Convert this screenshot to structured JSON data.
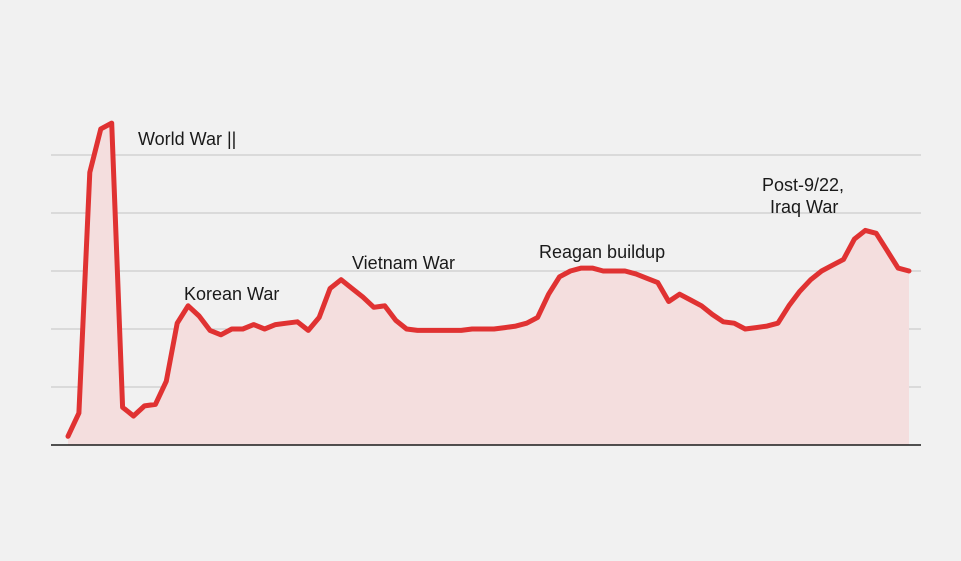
{
  "chart_data": {
    "type": "area",
    "title": "",
    "xlabel": "",
    "ylabel": "",
    "grid": true,
    "legend": "none",
    "ylim": [
      0,
      100
    ],
    "x": [
      0,
      1,
      2,
      3,
      4,
      5,
      6,
      7,
      8,
      9,
      10,
      11,
      12,
      13,
      14,
      15,
      16,
      17,
      18,
      19,
      20,
      21,
      22,
      23,
      24,
      25,
      26,
      27,
      28,
      29,
      30,
      31,
      32,
      33,
      34,
      35,
      36,
      37,
      38,
      39,
      40,
      41,
      42,
      43,
      44,
      45,
      46,
      47,
      48,
      49,
      50,
      51,
      52,
      53,
      54,
      55,
      56,
      57,
      58,
      59,
      60,
      61,
      62,
      63,
      64,
      65,
      66,
      67,
      68,
      69,
      70,
      71,
      72,
      73,
      74,
      75,
      76,
      77
    ],
    "series": [
      {
        "values": [
          3,
          11,
          94,
          109,
          111,
          13,
          10,
          13.5,
          14,
          22,
          42,
          48,
          44.5,
          39.5,
          38,
          40,
          40,
          41.5,
          40,
          41.5,
          42,
          42.5,
          39.5,
          44,
          54,
          57,
          54,
          51,
          47.5,
          48,
          43,
          40,
          39.5,
          39.5,
          39.5,
          39.5,
          39.5,
          40,
          40,
          40,
          40.5,
          41,
          42,
          44,
          52,
          58,
          60,
          61,
          61,
          60,
          60,
          60,
          59,
          57.5,
          56,
          49.5,
          52,
          50,
          48,
          45,
          42.5,
          42,
          40,
          40.5,
          41,
          42,
          48,
          53,
          57,
          60,
          62,
          64,
          71,
          74,
          73,
          67,
          61,
          60
        ]
      }
    ],
    "annotations": {
      "ww2": "World War ||",
      "korea": "Korean War",
      "vietnam": "Vietnam War",
      "reagan": "Reagan buildup",
      "iraq_line1": "Post-9/22,",
      "iraq_line2": "Iraq War"
    },
    "colors": {
      "line": "#e03232",
      "fill": "#f4dede",
      "grid": "#c4c4c4",
      "axis": "#1a1a1a",
      "background": "#f1f1f1"
    }
  }
}
